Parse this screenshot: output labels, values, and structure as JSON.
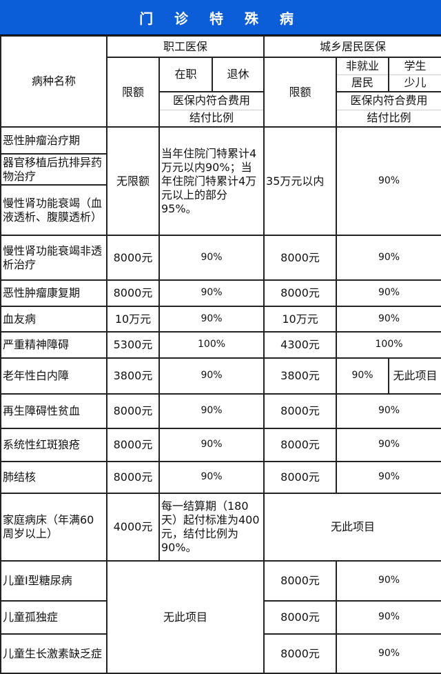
{
  "title": "门 诊 特 殊 病",
  "header": {
    "disease_name": "病种名称",
    "employee": "职工医保",
    "resident": "城乡居民医保",
    "limit": "限额",
    "employed": "在职",
    "retired": "退休",
    "non_employed_1": "非就业",
    "non_employed_2": "居民",
    "student_1": "学生",
    "student_2": "少儿",
    "ratio_1": "医保内符合费用",
    "ratio_2": "结付比例"
  },
  "colors": {
    "title_bg": "#0b5ed7",
    "title_text": "#ffffff"
  },
  "rows": [
    {
      "name": "恶性肿瘤治疗期"
    },
    {
      "name": "器官移植后抗排异药物治疗"
    },
    {
      "name": "慢性肾功能衰竭（血液透析、腹膜透析）"
    },
    {
      "name": "慢性肾功能衰竭非透析治疗",
      "emp_limit": "8000元",
      "emp_ratio": "90%",
      "res_limit": "8000元",
      "res_ratio": "90%"
    },
    {
      "name": "恶性肿瘤康复期",
      "emp_limit": "8000元",
      "emp_ratio": "90%",
      "res_limit": "8000元",
      "res_ratio": "90%"
    },
    {
      "name": "血友病",
      "emp_limit": "10万元",
      "emp_ratio": "90%",
      "res_limit": "10万元",
      "res_ratio": "90%"
    },
    {
      "name": "严重精神障碍",
      "emp_limit": "5300元",
      "emp_ratio": "100%",
      "res_limit": "4300元",
      "res_ratio": "100%"
    },
    {
      "name": "老年性白内障",
      "emp_limit": "3800元",
      "emp_ratio": "90%",
      "res_limit": "3800元",
      "res_ratio_nonemp": "90%",
      "res_ratio_student": "无此项目"
    },
    {
      "name": "再生障碍性贫血",
      "emp_limit": "8000元",
      "emp_ratio": "90%",
      "res_limit": "8000元",
      "res_ratio": "90%"
    },
    {
      "name": "系统性红斑狼疮",
      "emp_limit": "8000元",
      "emp_ratio": "90%",
      "res_limit": "8000元",
      "res_ratio": "90%"
    },
    {
      "name": "肺结核",
      "emp_limit": "8000元",
      "emp_ratio": "90%",
      "res_limit": "8000元",
      "res_ratio": "90%"
    },
    {
      "name": "家庭病床（年满60周岁以上）",
      "emp_limit": "4000元",
      "emp_ratio": "每一结算期（180天）起付标准为400元，结付比例为90%。",
      "resident_note": "无此项目"
    },
    {
      "name": "儿童Ⅰ型糖尿病",
      "res_limit": "8000元",
      "res_ratio": "90%"
    },
    {
      "name": "儿童孤独症",
      "res_limit": "8000元",
      "res_ratio": "90%"
    },
    {
      "name": "儿童生长激素缺乏症",
      "res_limit": "8000元",
      "res_ratio": "90%"
    }
  ],
  "group_top": {
    "emp_limit": "无限额",
    "emp_ratio": "当年住院门特累计4万元以内90%；当年住院门特累计4万元以上的部分95%。",
    "res_limit": "35万元以内",
    "res_ratio": "90%"
  },
  "group_children": {
    "employee_note": "无此项目"
  }
}
